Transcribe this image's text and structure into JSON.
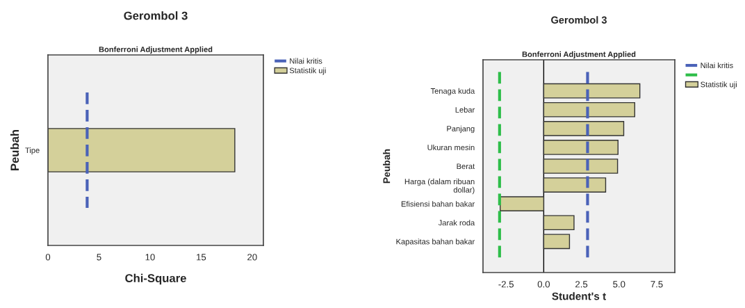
{
  "chart_data": [
    {
      "type": "bar",
      "orientation": "horizontal",
      "title": "Gerombol 3",
      "subtitle": "Bonferroni Adjustment Applied",
      "xlabel": "Chi-Square",
      "ylabel": "Peubah",
      "categories": [
        null,
        "Tipe",
        null
      ],
      "series": [
        {
          "name": "Statistik uji",
          "color": "#d4d09a",
          "values": [
            null,
            18.3,
            null
          ]
        }
      ],
      "xlim": [
        0,
        21.1
      ],
      "xticks": [
        0,
        5,
        10,
        15,
        20
      ],
      "ref_lines": [
        {
          "axis": "x",
          "value": 3.84,
          "label": "Nilai kritis",
          "color": "#4a62b8",
          "line_style": "dashed"
        }
      ],
      "legend": "right",
      "grid": false
    },
    {
      "type": "bar",
      "orientation": "horizontal",
      "title": "Gerombol 3",
      "subtitle": "Bonferroni Adjustment Applied",
      "xlabel": "Student's t",
      "ylabel": "Peubah",
      "categories": [
        null,
        "Tenaga kuda",
        "Lebar",
        "Panjang",
        "Ukuran mesin",
        "Berat",
        "Harga (dalam ribuan\ndollar)",
        "Efisiensi bahan bakar",
        "Jarak roda",
        "Kapasitas bahan bakar",
        null
      ],
      "series": [
        {
          "name": "Statistik uji",
          "color": "#d4d09a",
          "values": [
            null,
            6.38,
            6.04,
            5.31,
            4.93,
            4.9,
            4.11,
            -2.89,
            2.01,
            1.71,
            null
          ]
        }
      ],
      "xlim": [
        -4.03,
        8.7
      ],
      "xticks": [
        {
          "value": -2.5,
          "label": "-2.5"
        },
        {
          "value": 0,
          "label": "0.0"
        },
        {
          "value": 2.5,
          "label": "2.5"
        },
        {
          "value": 5,
          "label": "5.0"
        },
        {
          "value": 7.5,
          "label": "7.5"
        }
      ],
      "ref_lines": [
        {
          "axis": "x",
          "value": 2.91,
          "label": "Nilai kritis",
          "color": "#4a62b8",
          "line_style": "dashed"
        },
        {
          "axis": "x",
          "value": -2.93,
          "label": null,
          "color": "#2fbe4a",
          "line_style": "dashed"
        },
        {
          "axis": "x",
          "value": 0,
          "label": null,
          "color": "#000000",
          "line_style": "solid"
        }
      ],
      "legend": "right",
      "grid": false
    }
  ]
}
